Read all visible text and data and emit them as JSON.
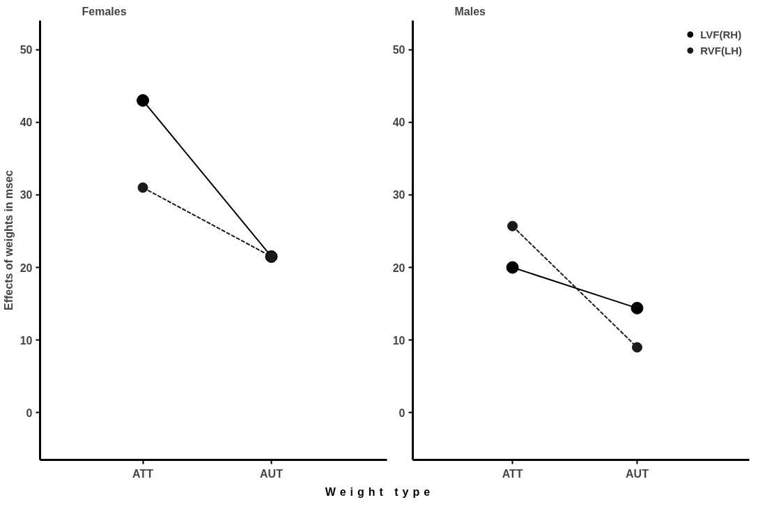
{
  "chart_data": [
    {
      "type": "line",
      "title": "Females",
      "ylabel": "Effects of weights in msec",
      "xlabel": "Weight type",
      "categories": [
        "ATT",
        "AUT"
      ],
      "series": [
        {
          "color": "#000000",
          "line_style": "solid",
          "values": [
            43,
            21.5
          ]
        },
        {
          "color": "#1a1a1a",
          "line_style": "dashed",
          "values": [
            31,
            21.5
          ]
        }
      ],
      "ylim": [
        -6.5,
        54
      ],
      "yticks": [
        0,
        10,
        20,
        30,
        40,
        50
      ],
      "grid": false,
      "marker": "circle"
    },
    {
      "type": "line",
      "title": "Males",
      "categories": [
        "ATT",
        "AUT"
      ],
      "series": [
        {
          "name": "LVF(RH)",
          "color": "#000000",
          "line_style": "solid",
          "values": [
            20,
            14.4
          ]
        },
        {
          "name": "RVF(LH)",
          "color": "#1a1a1a",
          "line_style": "dashed",
          "values": [
            25.7,
            9
          ]
        }
      ],
      "ylim": [
        -6.5,
        54
      ],
      "yticks": [
        0,
        10,
        20,
        30,
        40,
        50
      ],
      "grid": false,
      "marker": "circle",
      "legend": "top right"
    }
  ]
}
